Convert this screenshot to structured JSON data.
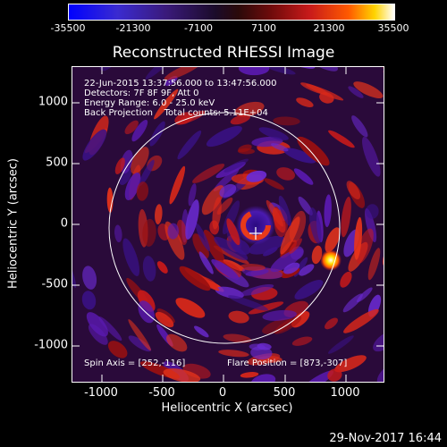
{
  "colorbar": {
    "ticks": [
      "-35500",
      "-21300",
      "-7100",
      "7100",
      "21300",
      "35500"
    ],
    "range": [
      -35500,
      35500
    ],
    "colors": [
      "#0000ff",
      "#3a1a7a",
      "#1b0b2a",
      "#6e0b0b",
      "#c81a1a",
      "#ff5a00",
      "#ffd400",
      "#ffffff"
    ]
  },
  "plot": {
    "title": "Reconstructed RHESSI Image",
    "xlabel": "Heliocentric X (arcsec)",
    "ylabel": "Heliocentric Y (arcsec)",
    "xticks": [
      "-1000",
      "-500",
      "0",
      "500",
      "1000"
    ],
    "yticks": [
      "1000",
      "500",
      "0",
      "-500",
      "-1000"
    ],
    "xlim": [
      -1280,
      1300
    ],
    "ylim": [
      -1280,
      1270
    ],
    "info_lines": [
      "22-Jun-2015 13:37:56.000 to 13:47:56.000",
      "Detectors: 7F 8F 9F, Att 0",
      "Energy Range: 6.0 - 25.0 keV",
      "Back Projection    Total counts: 5.11E+04"
    ],
    "spin_axis": "Spin Axis = [252,-116]",
    "flare_position": "Flare Position = [873,-307]"
  },
  "timestamp": "29-Nov-2017 16:44"
}
